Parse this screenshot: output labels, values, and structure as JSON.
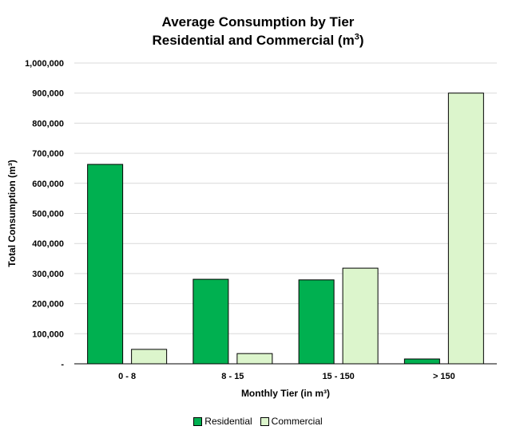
{
  "chart_data": {
    "type": "bar",
    "title_line1": "Average Consumption by Tier",
    "title_line2": "Residential and Commercial (m",
    "title_sup": "3",
    "title_close": ")",
    "xlabel": "Monthly Tier (in m³)",
    "ylabel": "Total Consumption (m³)",
    "categories": [
      "0 - 8",
      "8 - 15",
      "15 - 150",
      "> 150"
    ],
    "ylim": [
      0,
      1000000
    ],
    "yticks": [
      0,
      100000,
      200000,
      300000,
      400000,
      500000,
      600000,
      700000,
      800000,
      900000,
      1000000
    ],
    "ytick_labels": [
      "-",
      "100,000",
      "200,000",
      "300,000",
      "400,000",
      "500,000",
      "600,000",
      "700,000",
      "800,000",
      "900,000",
      "1,000,000"
    ],
    "grid": true,
    "legend_position": "bottom",
    "series": [
      {
        "name": "Residential",
        "color": "#00b050",
        "values": [
          663000,
          281000,
          279000,
          16000
        ]
      },
      {
        "name": "Commercial",
        "color": "#dcf5cc",
        "values": [
          48000,
          34000,
          318000,
          900000
        ]
      }
    ]
  }
}
